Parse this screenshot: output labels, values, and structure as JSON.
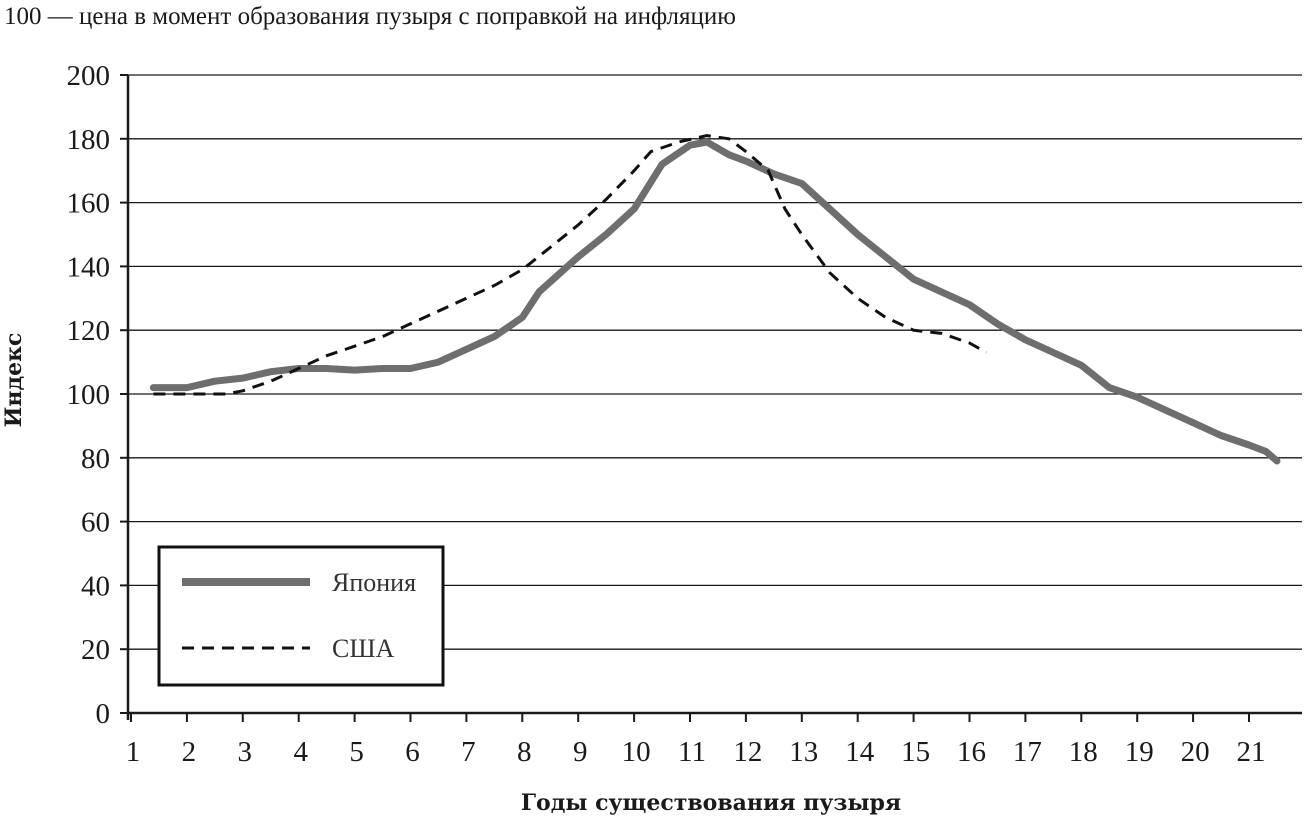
{
  "chart_data": {
    "type": "line",
    "subtitle": "100 — цена в момент образования пузыря с поправкой на инфляцию",
    "xlabel": "Годы существования пузыря",
    "ylabel": "Индекс",
    "xlim": [
      1,
      22.05
    ],
    "ylim": [
      0,
      200
    ],
    "x_ticks": [
      "1",
      "2",
      "3",
      "4",
      "5",
      "6",
      "7",
      "8",
      "9",
      "10",
      "11",
      "12",
      "13",
      "14",
      "15",
      "16",
      "17",
      "18",
      "19",
      "20",
      "21"
    ],
    "y_ticks": [
      "0",
      "20",
      "40",
      "60",
      "80",
      "100",
      "120",
      "140",
      "160",
      "180",
      "200"
    ],
    "grid": true,
    "legend_position": "bottom-left",
    "series": [
      {
        "name": "Япония",
        "style": "solid",
        "color": "#6e6e6e",
        "points": [
          [
            1.4,
            102
          ],
          [
            2,
            102
          ],
          [
            2.5,
            104
          ],
          [
            3,
            105
          ],
          [
            3.5,
            107
          ],
          [
            4,
            108
          ],
          [
            4.5,
            108
          ],
          [
            5,
            107.5
          ],
          [
            5.5,
            108
          ],
          [
            6,
            108
          ],
          [
            6.5,
            110
          ],
          [
            7,
            114
          ],
          [
            7.5,
            118
          ],
          [
            8,
            124
          ],
          [
            8.3,
            132
          ],
          [
            9,
            143
          ],
          [
            9.5,
            150
          ],
          [
            10,
            158
          ],
          [
            10.5,
            172
          ],
          [
            11,
            178
          ],
          [
            11.3,
            179
          ],
          [
            11.7,
            175
          ],
          [
            12,
            173
          ],
          [
            12.5,
            169
          ],
          [
            13,
            166
          ],
          [
            13.5,
            158
          ],
          [
            14,
            150
          ],
          [
            14.5,
            143
          ],
          [
            15,
            136
          ],
          [
            15.5,
            132
          ],
          [
            16,
            128
          ],
          [
            16.5,
            122
          ],
          [
            17,
            117
          ],
          [
            17.5,
            113
          ],
          [
            18,
            109
          ],
          [
            18.5,
            102
          ],
          [
            19,
            99
          ],
          [
            19.5,
            95
          ],
          [
            20,
            91
          ],
          [
            20.5,
            87
          ],
          [
            21,
            84
          ],
          [
            21.3,
            82
          ],
          [
            21.5,
            79
          ]
        ]
      },
      {
        "name": "США",
        "style": "dashed",
        "color": "#111111",
        "points": [
          [
            1.4,
            100
          ],
          [
            2,
            100
          ],
          [
            2.7,
            100
          ],
          [
            3,
            101
          ],
          [
            3.5,
            104
          ],
          [
            4,
            108
          ],
          [
            4.5,
            112
          ],
          [
            5,
            115
          ],
          [
            5.5,
            118
          ],
          [
            6,
            122
          ],
          [
            6.5,
            126
          ],
          [
            7,
            130
          ],
          [
            7.5,
            134
          ],
          [
            8,
            139
          ],
          [
            8.5,
            146
          ],
          [
            9,
            153
          ],
          [
            9.5,
            161
          ],
          [
            10,
            170
          ],
          [
            10.3,
            176
          ],
          [
            10.8,
            179
          ],
          [
            11.3,
            181
          ],
          [
            11.7,
            180
          ],
          [
            12,
            176
          ],
          [
            12.4,
            170
          ],
          [
            12.7,
            158
          ],
          [
            13,
            150
          ],
          [
            13.5,
            138
          ],
          [
            14,
            130
          ],
          [
            14.5,
            124
          ],
          [
            15,
            120
          ],
          [
            15.5,
            119
          ],
          [
            16,
            116
          ],
          [
            16.3,
            113
          ]
        ]
      }
    ]
  }
}
